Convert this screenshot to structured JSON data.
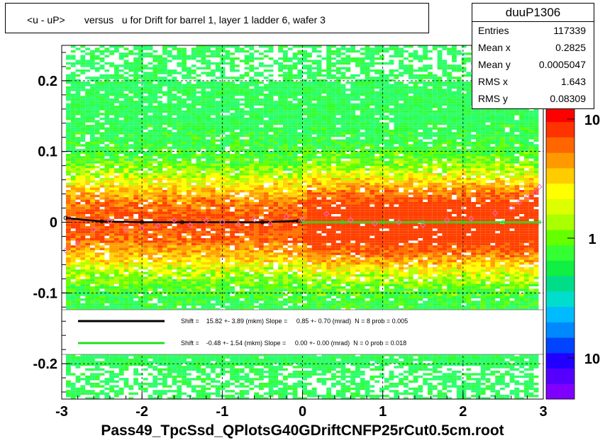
{
  "chart_data": {
    "type": "heatmap",
    "title": "<u - uP>       versus   u for Drift for barrel 1, layer 1 ladder 6, wafer 3",
    "xlim": [
      -3,
      3
    ],
    "ylim": [
      -0.25,
      0.25
    ],
    "x_ticks": [
      "-3",
      "-2",
      "-1",
      "0",
      "1",
      "2",
      "3"
    ],
    "y_ticks": [
      "0.2",
      "0.1",
      "0",
      "-0.1",
      "-0.2"
    ],
    "grid": true,
    "z_scale": "log",
    "colorbar_labels": [
      "10",
      "1",
      "10"
    ],
    "stats": {
      "name": "duuP1306",
      "rows": [
        {
          "key": "Entries",
          "value": "117339"
        },
        {
          "key": "Mean x",
          "value": "0.2825"
        },
        {
          "key": "Mean y",
          "value": "0.0005047"
        },
        {
          "key": "RMS x",
          "value": "1.643"
        },
        {
          "key": "RMS y",
          "value": "0.08309"
        }
      ]
    },
    "fit_legend": [
      {
        "color": "#000000",
        "text": "Shift =    15.82 +- 3.89 (mkm) Slope =     0.85 +- 0.70 (mrad)  N = 8 prob = 0.005"
      },
      {
        "color": "#22dd22",
        "text": "Shift =    -0.48 +- 1.54 (mkm) Slope =     0.00 +- 0.00 (mrad)  N = 0 prob = 0.018"
      }
    ],
    "series": [
      {
        "color": "#000000",
        "x": [
          -2.95,
          -2.5,
          -2.0,
          -1.5,
          -1.0,
          -0.5,
          -0.05
        ],
        "y": [
          0.006,
          0.001,
          0.0,
          0.0,
          0.0,
          0.0,
          0.002
        ]
      },
      {
        "color": "#22dd22",
        "x": [
          0.0,
          0.5,
          1.0,
          1.5,
          2.0,
          2.5,
          2.95
        ],
        "y": [
          0.0,
          0.0,
          0.0,
          0.0,
          0.0,
          0.0,
          0.0
        ]
      }
    ],
    "profile_points": {
      "color": "#ff66cc",
      "x": [
        -2.95,
        -2.8,
        -2.6,
        -2.4,
        -2.2,
        -2.0,
        -1.8,
        -1.6,
        -1.4,
        -1.2,
        -1.0,
        -0.8,
        -0.6,
        -0.4,
        -0.2,
        0.0,
        0.3,
        0.6,
        0.9,
        1.2,
        1.5,
        1.8,
        2.1,
        2.4,
        2.6,
        2.7,
        2.8,
        2.9,
        2.95
      ],
      "y": [
        -0.04,
        -0.03,
        -0.01,
        0.002,
        -0.01,
        -0.008,
        -0.005,
        0.003,
        -0.004,
        0.002,
        0.0,
        -0.003,
        0.004,
        -0.002,
        0.008,
        0.004,
        0.012,
        0.003,
        -0.002,
        0.0,
        -0.004,
        0.003,
        0.005,
        0.013,
        0.02,
        0.028,
        0.035,
        0.042,
        0.05
      ]
    }
  },
  "footer": "Pass49_TpcSsd_QPlotsG40GDriftCNFP25rCut0.5cm.root"
}
